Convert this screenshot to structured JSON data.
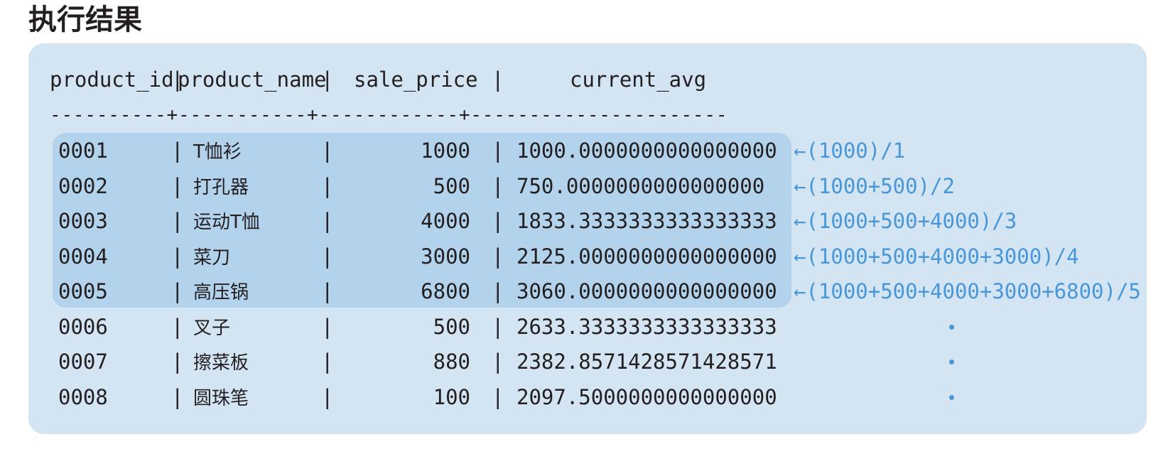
{
  "title": "执行结果",
  "header": {
    "product_id": "product_id",
    "product_name": "product_name",
    "sale_price": "sale_price",
    "current_avg": "current_avg"
  },
  "separator": "----------+-----------+------------+----------------------",
  "rows": [
    {
      "product_id": "0001",
      "product_name": "T恤衫",
      "sale_price": "1000",
      "current_avg": "1000.0000000000000000",
      "note": "←(1000)/1"
    },
    {
      "product_id": "0002",
      "product_name": "打孔器",
      "sale_price": "500",
      "current_avg": "750.0000000000000000",
      "note": "←(1000+500)/2"
    },
    {
      "product_id": "0003",
      "product_name": "运动T恤",
      "sale_price": "4000",
      "current_avg": "1833.3333333333333333",
      "note": "←(1000+500+4000)/3"
    },
    {
      "product_id": "0004",
      "product_name": "菜刀",
      "sale_price": "3000",
      "current_avg": "2125.0000000000000000",
      "note": "←(1000+500+4000+3000)/4"
    },
    {
      "product_id": "0005",
      "product_name": "高压锅",
      "sale_price": "6800",
      "current_avg": "3060.0000000000000000",
      "note": "←(1000+500+4000+3000+6800)/5"
    },
    {
      "product_id": "0006",
      "product_name": "叉子",
      "sale_price": "500",
      "current_avg": "2633.3333333333333333",
      "note": ""
    },
    {
      "product_id": "0007",
      "product_name": "擦菜板",
      "sale_price": "880",
      "current_avg": "2382.8571428571428571",
      "note": ""
    },
    {
      "product_id": "0008",
      "product_name": "圆珠笔",
      "sale_price": "100",
      "current_avg": "2097.5000000000000000",
      "note": ""
    }
  ],
  "colors": {
    "panel": "#d3e4f3",
    "highlight": "#b3d3ec",
    "annotation": "#4a97d8",
    "text": "#231f20"
  }
}
